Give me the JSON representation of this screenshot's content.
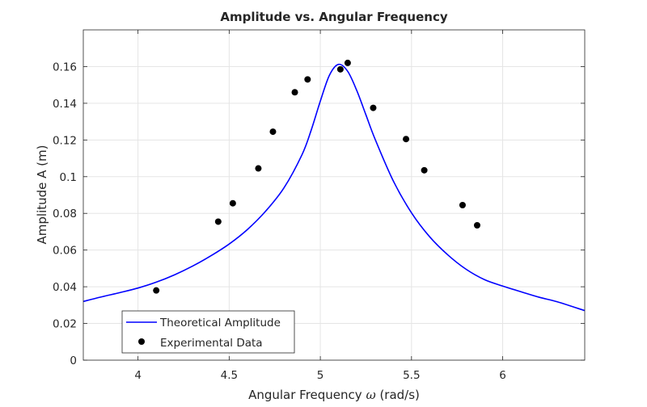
{
  "chart_data": {
    "type": "line",
    "title": "Amplitude vs. Angular Frequency",
    "xlabel_main": "Angular Frequency ",
    "xlabel_symbol": "ω",
    "xlabel_unit": " (rad/s)",
    "ylabel": "Amplitude A (m)",
    "xlim": [
      3.7,
      6.45
    ],
    "ylim": [
      0,
      0.18
    ],
    "xticks": [
      4,
      4.5,
      5,
      5.5,
      6
    ],
    "xtick_labels": [
      "4",
      "4.5",
      "5",
      "5.5",
      "6"
    ],
    "yticks": [
      0,
      0.02,
      0.04,
      0.06,
      0.08,
      0.1,
      0.12,
      0.14,
      0.16
    ],
    "ytick_labels": [
      "0",
      "0.02",
      "0.04",
      "0.06",
      "0.08",
      "0.1",
      "0.12",
      "0.14",
      "0.16"
    ],
    "grid": true,
    "legend_position": "bottom-left",
    "colors": {
      "theory": "#0000ff",
      "data": "#000000",
      "grid": "#e5e5e5",
      "axis": "#262626"
    },
    "series": [
      {
        "name": "Theoretical Amplitude",
        "kind": "line",
        "x": [
          3.7,
          3.8,
          3.9,
          4.0,
          4.1,
          4.2,
          4.3,
          4.4,
          4.5,
          4.6,
          4.7,
          4.8,
          4.9,
          4.95,
          5.0,
          5.05,
          5.1,
          5.15,
          5.2,
          5.25,
          5.3,
          5.4,
          5.5,
          5.6,
          5.7,
          5.8,
          5.9,
          6.0,
          6.1,
          6.2,
          6.3,
          6.45
        ],
        "y": [
          0.032,
          0.0345,
          0.0368,
          0.0393,
          0.0425,
          0.0465,
          0.0513,
          0.0569,
          0.0633,
          0.0712,
          0.0812,
          0.0938,
          0.1121,
          0.1254,
          0.1412,
          0.1553,
          0.1612,
          0.1574,
          0.1469,
          0.1337,
          0.1205,
          0.0977,
          0.0803,
          0.0672,
          0.0573,
          0.0495,
          0.0439,
          0.0404,
          0.0373,
          0.0343,
          0.0318,
          0.027
        ]
      },
      {
        "name": "Experimental Data",
        "kind": "scatter",
        "x": [
          4.1,
          4.44,
          4.52,
          4.66,
          4.74,
          4.86,
          4.93,
          5.11,
          5.15,
          5.29,
          5.47,
          5.57,
          5.78,
          5.86
        ],
        "y": [
          0.038,
          0.0755,
          0.0855,
          0.1045,
          0.1245,
          0.146,
          0.153,
          0.1585,
          0.162,
          0.1375,
          0.1205,
          0.1035,
          0.0845,
          0.0735
        ]
      }
    ]
  }
}
